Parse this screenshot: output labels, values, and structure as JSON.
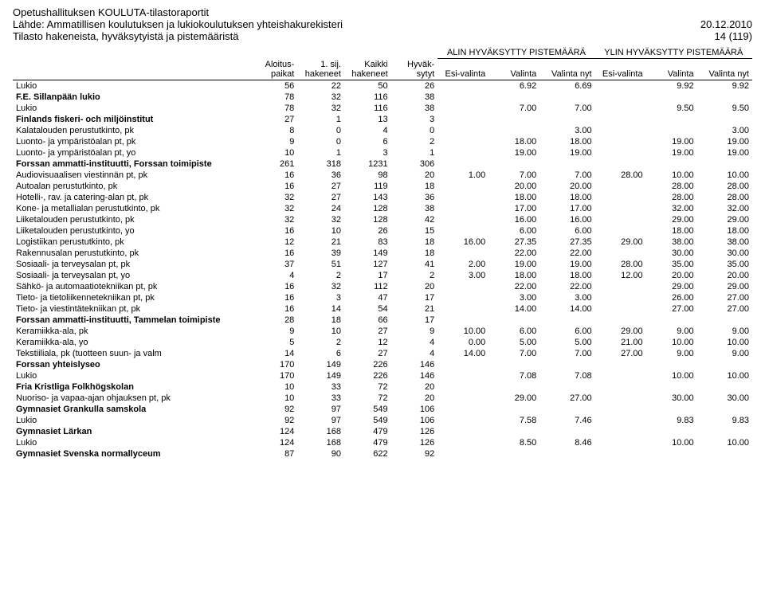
{
  "header": {
    "title": "Opetushallituksen KOULUTA-tilastoraportit",
    "subtitle": "Lähde: Ammatillisen koulutuksen ja lukiokoulutuksen yhteishakurekisteri",
    "date": "20.12.2010",
    "footer_left": "Tilasto hakeneista, hyväksytyistä ja pistemääristä",
    "footer_right": "14 (119)"
  },
  "columns": {
    "group_alin": "ALIN HYVÄKSYTTY PISTEMÄÄRÄ",
    "group_ylin": "YLIN HYVÄKSYTTY PISTEMÄÄRÄ",
    "aloituspaikat": "Aloitus-paikat",
    "sij": "1. sij. hakeneet",
    "kaikki": "Kaikki hakeneet",
    "hyvak": "Hyväk-sytyt",
    "esi_a": "Esi-valinta",
    "val_a": "Valinta",
    "valnyt_a": "Valinta nyt",
    "esi_y": "Esi-valinta",
    "val_y": "Valinta",
    "valnyt_y": "Valinta nyt"
  },
  "rows": [
    {
      "bold": false,
      "label": "Lukio",
      "c": [
        "56",
        "22",
        "50",
        "26",
        "",
        "6.92",
        "6.69",
        "",
        "9.92",
        "9.92"
      ]
    },
    {
      "bold": true,
      "label": "F.E. Sillanpään lukio",
      "c": [
        "78",
        "32",
        "116",
        "38",
        "",
        "",
        "",
        "",
        "",
        ""
      ]
    },
    {
      "bold": false,
      "label": "Lukio",
      "c": [
        "78",
        "32",
        "116",
        "38",
        "",
        "7.00",
        "7.00",
        "",
        "9.50",
        "9.50"
      ]
    },
    {
      "bold": true,
      "label": "Finlands fiskeri- och miljöinstitut",
      "c": [
        "27",
        "1",
        "13",
        "3",
        "",
        "",
        "",
        "",
        "",
        ""
      ]
    },
    {
      "bold": false,
      "label": "Kalatalouden perustutkinto, pk",
      "c": [
        "8",
        "0",
        "4",
        "0",
        "",
        "",
        "3.00",
        "",
        "",
        "3.00"
      ]
    },
    {
      "bold": false,
      "label": "Luonto- ja ympäristöalan pt, pk",
      "c": [
        "9",
        "0",
        "6",
        "2",
        "",
        "18.00",
        "18.00",
        "",
        "19.00",
        "19.00"
      ]
    },
    {
      "bold": false,
      "label": "Luonto- ja ympäristöalan pt, yo",
      "c": [
        "10",
        "1",
        "3",
        "1",
        "",
        "19.00",
        "19.00",
        "",
        "19.00",
        "19.00"
      ]
    },
    {
      "bold": true,
      "label": "Forssan ammatti-instituutti, Forssan toimipiste",
      "c": [
        "261",
        "318",
        "1231",
        "306",
        "",
        "",
        "",
        "",
        "",
        ""
      ]
    },
    {
      "bold": false,
      "label": "Audiovisuaalisen viestinnän pt, pk",
      "c": [
        "16",
        "36",
        "98",
        "20",
        "1.00",
        "7.00",
        "7.00",
        "28.00",
        "10.00",
        "10.00"
      ]
    },
    {
      "bold": false,
      "label": "Autoalan perustutkinto, pk",
      "c": [
        "16",
        "27",
        "119",
        "18",
        "",
        "20.00",
        "20.00",
        "",
        "28.00",
        "28.00"
      ]
    },
    {
      "bold": false,
      "label": "Hotelli-, rav. ja catering-alan pt, pk",
      "c": [
        "32",
        "27",
        "143",
        "36",
        "",
        "18.00",
        "18.00",
        "",
        "28.00",
        "28.00"
      ]
    },
    {
      "bold": false,
      "label": "Kone- ja metallialan perustutkinto, pk",
      "c": [
        "32",
        "24",
        "128",
        "38",
        "",
        "17.00",
        "17.00",
        "",
        "32.00",
        "32.00"
      ]
    },
    {
      "bold": false,
      "label": "Liiketalouden perustutkinto, pk",
      "c": [
        "32",
        "32",
        "128",
        "42",
        "",
        "16.00",
        "16.00",
        "",
        "29.00",
        "29.00"
      ]
    },
    {
      "bold": false,
      "label": "Liiketalouden perustutkinto, yo",
      "c": [
        "16",
        "10",
        "26",
        "15",
        "",
        "6.00",
        "6.00",
        "",
        "18.00",
        "18.00"
      ]
    },
    {
      "bold": false,
      "label": "Logistiikan perustutkinto, pk",
      "c": [
        "12",
        "21",
        "83",
        "18",
        "16.00",
        "27.35",
        "27.35",
        "29.00",
        "38.00",
        "38.00"
      ]
    },
    {
      "bold": false,
      "label": "Rakennusalan perustutkinto, pk",
      "c": [
        "16",
        "39",
        "149",
        "18",
        "",
        "22.00",
        "22.00",
        "",
        "30.00",
        "30.00"
      ]
    },
    {
      "bold": false,
      "label": "Sosiaali- ja terveysalan pt, pk",
      "c": [
        "37",
        "51",
        "127",
        "41",
        "2.00",
        "19.00",
        "19.00",
        "28.00",
        "35.00",
        "35.00"
      ]
    },
    {
      "bold": false,
      "label": "Sosiaali- ja terveysalan pt, yo",
      "c": [
        "4",
        "2",
        "17",
        "2",
        "3.00",
        "18.00",
        "18.00",
        "12.00",
        "20.00",
        "20.00"
      ]
    },
    {
      "bold": false,
      "label": "Sähkö- ja automaatiotekniikan pt, pk",
      "c": [
        "16",
        "32",
        "112",
        "20",
        "",
        "22.00",
        "22.00",
        "",
        "29.00",
        "29.00"
      ]
    },
    {
      "bold": false,
      "label": "Tieto- ja tietoliikennetekniikan pt, pk",
      "c": [
        "16",
        "3",
        "47",
        "17",
        "",
        "3.00",
        "3.00",
        "",
        "26.00",
        "27.00"
      ]
    },
    {
      "bold": false,
      "label": "Tieto- ja viestintätekniikan pt, pk",
      "c": [
        "16",
        "14",
        "54",
        "21",
        "",
        "14.00",
        "14.00",
        "",
        "27.00",
        "27.00"
      ]
    },
    {
      "bold": true,
      "label": "Forssan ammatti-instituutti, Tammelan toimipiste",
      "c": [
        "28",
        "18",
        "66",
        "17",
        "",
        "",
        "",
        "",
        "",
        ""
      ]
    },
    {
      "bold": false,
      "label": "Keramiikka-ala, pk",
      "c": [
        "9",
        "10",
        "27",
        "9",
        "10.00",
        "6.00",
        "6.00",
        "29.00",
        "9.00",
        "9.00"
      ]
    },
    {
      "bold": false,
      "label": "Keramiikka-ala, yo",
      "c": [
        "5",
        "2",
        "12",
        "4",
        "0.00",
        "5.00",
        "5.00",
        "21.00",
        "10.00",
        "10.00"
      ]
    },
    {
      "bold": false,
      "label": "Tekstiiliala, pk (tuotteen suun- ja valm",
      "c": [
        "14",
        "6",
        "27",
        "4",
        "14.00",
        "7.00",
        "7.00",
        "27.00",
        "9.00",
        "9.00"
      ]
    },
    {
      "bold": true,
      "label": "Forssan yhteislyseo",
      "c": [
        "170",
        "149",
        "226",
        "146",
        "",
        "",
        "",
        "",
        "",
        ""
      ]
    },
    {
      "bold": false,
      "label": "Lukio",
      "c": [
        "170",
        "149",
        "226",
        "146",
        "",
        "7.08",
        "7.08",
        "",
        "10.00",
        "10.00"
      ]
    },
    {
      "bold": true,
      "label": "Fria Kristliga Folkhögskolan",
      "c": [
        "10",
        "33",
        "72",
        "20",
        "",
        "",
        "",
        "",
        "",
        ""
      ]
    },
    {
      "bold": false,
      "label": "Nuoriso- ja vapaa-ajan ohjauksen pt, pk",
      "c": [
        "10",
        "33",
        "72",
        "20",
        "",
        "29.00",
        "27.00",
        "",
        "30.00",
        "30.00"
      ]
    },
    {
      "bold": true,
      "label": "Gymnasiet Grankulla samskola",
      "c": [
        "92",
        "97",
        "549",
        "106",
        "",
        "",
        "",
        "",
        "",
        ""
      ]
    },
    {
      "bold": false,
      "label": "Lukio",
      "c": [
        "92",
        "97",
        "549",
        "106",
        "",
        "7.58",
        "7.46",
        "",
        "9.83",
        "9.83"
      ]
    },
    {
      "bold": true,
      "label": "Gymnasiet Lärkan",
      "c": [
        "124",
        "168",
        "479",
        "126",
        "",
        "",
        "",
        "",
        "",
        ""
      ]
    },
    {
      "bold": false,
      "label": "Lukio",
      "c": [
        "124",
        "168",
        "479",
        "126",
        "",
        "8.50",
        "8.46",
        "",
        "10.00",
        "10.00"
      ]
    },
    {
      "bold": true,
      "label": "Gymnasiet Svenska normallyceum",
      "c": [
        "87",
        "90",
        "622",
        "92",
        "",
        "",
        "",
        "",
        "",
        ""
      ]
    }
  ]
}
